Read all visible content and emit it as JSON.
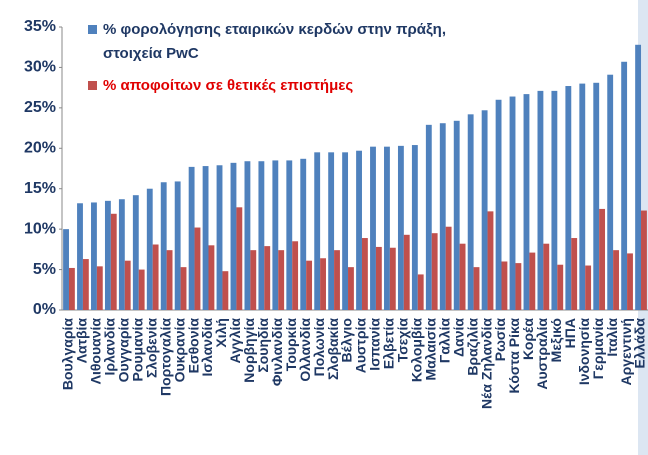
{
  "chart_data": {
    "type": "bar",
    "categories": [
      "Βουλγαρία",
      "Λατβία",
      "Λιθουανία",
      "Ιρλανδία",
      "Ουγγαρία",
      "Ρουμανία",
      "Σλοβενία",
      "Πορτογαλία",
      "Ουκρανία",
      "Εσθονία",
      "Ισλανδία",
      "Χιλή",
      "Αγγλία",
      "Νορβηγία",
      "Σουηδία",
      "Φινλανδία",
      "Τουρκία",
      "Ολλανδία",
      "Πολωνία",
      "Σλοβακία",
      "Βέλγιο",
      "Αυστρία",
      "Ισπανία",
      "Ελβετία",
      "Τσεχία",
      "Κολομβία",
      "Μαλαισία",
      "Γαλλία",
      "Δανία",
      "Βραζιλία",
      "Νέα Ζηλανδία",
      "Ρωσία",
      "Κόστα Ρίκα",
      "Κορέα",
      "Αυστραλία",
      "Μεξικό",
      "ΗΠΑ",
      "Ινδονησία",
      "Γερμανία",
      "Ιταλία",
      "Αργεντινή",
      "Ελλάδα"
    ],
    "series": [
      {
        "name": "% φορολόγησης εταιρικών κερδών στην πράξη, στοιχεία PwC",
        "color": "#4f81bd",
        "values": [
          10,
          13.2,
          13.3,
          13.5,
          13.7,
          14.2,
          15,
          15.8,
          15.9,
          17.7,
          17.8,
          17.9,
          18.2,
          18.4,
          18.4,
          18.5,
          18.5,
          18.7,
          19.5,
          19.5,
          19.5,
          19.7,
          20.2,
          20.2,
          20.3,
          20.4,
          22.9,
          23.1,
          23.4,
          24.2,
          24.7,
          26,
          26.4,
          26.7,
          27.1,
          27.1,
          27.7,
          28,
          28.1,
          29.1,
          30.7,
          32.8
        ]
      },
      {
        "name": "% αποφοίτων σε θετικές επιστήμες",
        "color": "#c0504d",
        "values": [
          5.2,
          6.3,
          5.4,
          11.9,
          6.1,
          5.0,
          8.1,
          7.4,
          5.3,
          10.2,
          8.0,
          4.8,
          12.7,
          7.4,
          7.9,
          7.4,
          8.5,
          6.1,
          6.4,
          7.4,
          5.3,
          8.9,
          7.8,
          7.7,
          9.3,
          4.4,
          9.5,
          10.3,
          8.2,
          5.3,
          12.2,
          6.0,
          5.8,
          7.1,
          8.2,
          5.6,
          8.9,
          5.5,
          12.5,
          7.4,
          7.0,
          12.3
        ]
      }
    ],
    "ylim": [
      0,
      35
    ],
    "yticks": [
      {
        "value": 0,
        "label": "0%"
      },
      {
        "value": 5,
        "label": "5%"
      },
      {
        "value": 10,
        "label": "10%"
      },
      {
        "value": 15,
        "label": "15%"
      },
      {
        "value": 20,
        "label": "20%"
      },
      {
        "value": 25,
        "label": "25%"
      },
      {
        "value": 30,
        "label": "30%"
      },
      {
        "value": 35,
        "label": "35%"
      }
    ],
    "grid": false
  }
}
